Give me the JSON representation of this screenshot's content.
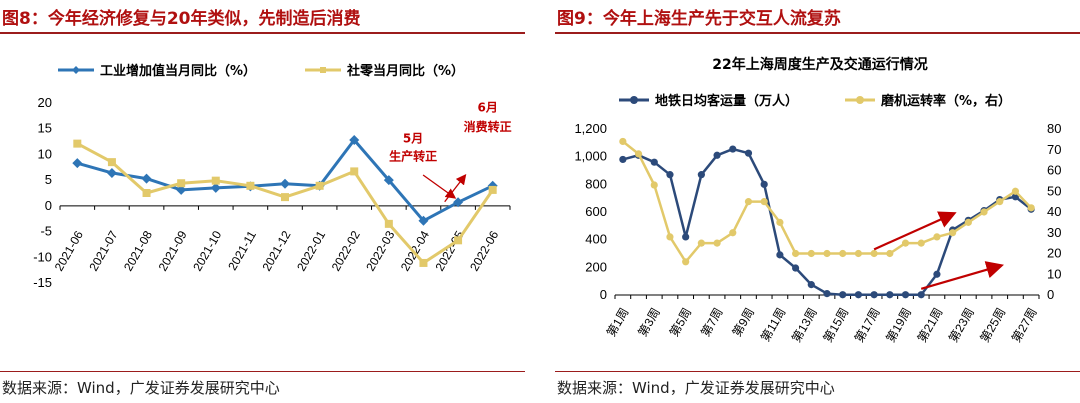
{
  "left": {
    "title": "图8：今年经济修复与20年类似，先制造后消费",
    "source": "数据来源：Wind，广发证券发展研究中心",
    "chart_data": {
      "type": "line",
      "categories": [
        "2021-06",
        "2021-07",
        "2021-08",
        "2021-09",
        "2021-10",
        "2021-11",
        "2021-12",
        "2022-01",
        "2022-02",
        "2022-03",
        "2022-04",
        "2022-05",
        "2022-06"
      ],
      "series": [
        {
          "name": "工业增加值当月同比（%）",
          "color": "#2e75b6",
          "values": [
            8.3,
            6.4,
            5.3,
            3.1,
            3.5,
            3.8,
            4.3,
            3.9,
            12.8,
            5.0,
            -2.9,
            0.7,
            3.9
          ]
        },
        {
          "name": "社零当月同比（%）",
          "color": "#e2c96a",
          "values": [
            12.1,
            8.5,
            2.5,
            4.4,
            4.9,
            3.9,
            1.7,
            3.9,
            6.7,
            -3.5,
            -11.1,
            -6.7,
            3.1
          ]
        }
      ],
      "ylim": [
        -15,
        20
      ],
      "yticks": [
        20,
        15,
        10,
        5,
        0,
        -5,
        -10,
        -15
      ],
      "grid": false,
      "legend": "top",
      "annotations": [
        {
          "text": [
            "5月",
            "生产转正"
          ],
          "category": "2022-05",
          "series": 0
        },
        {
          "text": [
            "6月",
            "消费转正"
          ],
          "category": "2022-06",
          "series": 1
        }
      ]
    }
  },
  "right": {
    "title": "图9：今年上海生产先于交互人流复苏",
    "source": "数据来源：Wind，广发证券发展研究中心",
    "chart_data": {
      "type": "line",
      "title": "22年上海周度生产及交通运行情况",
      "categories": [
        "第1周",
        "第2周",
        "第3周",
        "第4周",
        "第5周",
        "第6周",
        "第7周",
        "第8周",
        "第9周",
        "第10周",
        "第11周",
        "第12周",
        "第13周",
        "第14周",
        "第15周",
        "第16周",
        "第17周",
        "第18周",
        "第19周",
        "第20周",
        "第21周",
        "第22周",
        "第23周",
        "第24周",
        "第25周",
        "第26周",
        "第27周"
      ],
      "xtick_labels": [
        "第1周",
        "第3周",
        "第5周",
        "第7周",
        "第9周",
        "第11周",
        "第13周",
        "第15周",
        "第17周",
        "第19周",
        "第21周",
        "第23周",
        "第25周",
        "第27周"
      ],
      "series": [
        {
          "name": "地铁日均客运量（万人）",
          "axis": "left",
          "color": "#2c4a7a",
          "values": [
            980,
            1010,
            960,
            870,
            420,
            870,
            1010,
            1055,
            1025,
            800,
            290,
            195,
            75,
            10,
            2,
            2,
            2,
            2,
            2,
            2,
            150,
            470,
            540,
            610,
            690,
            710,
            620
          ]
        },
        {
          "name": "磨机运转率（%，右）",
          "axis": "right",
          "color": "#e2c96a",
          "values": [
            74,
            68,
            53,
            28,
            16,
            25,
            25,
            30,
            45,
            45,
            35,
            20,
            20,
            20,
            20,
            20,
            20,
            20,
            25,
            25,
            28,
            30,
            35,
            40,
            45,
            50,
            42
          ]
        }
      ],
      "y_left": {
        "lim": [
          0,
          1200
        ],
        "ticks": [
          "1,200",
          "1,000",
          "800",
          "600",
          "400",
          "200",
          "0"
        ]
      },
      "y_right": {
        "lim": [
          0,
          80
        ],
        "ticks": [
          "80",
          "70",
          "60",
          "50",
          "40",
          "30",
          "20",
          "10",
          "0"
        ]
      },
      "grid": false,
      "legend": "top"
    }
  }
}
